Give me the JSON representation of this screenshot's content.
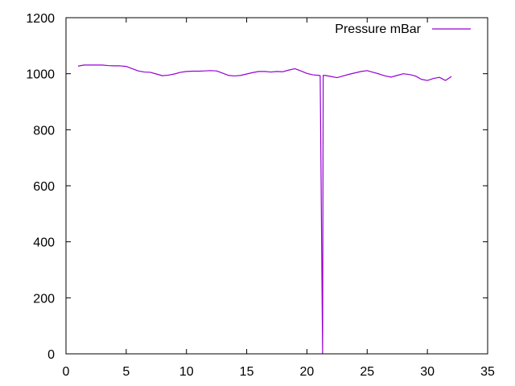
{
  "chart_data": {
    "type": "line",
    "title": "",
    "xlabel": "",
    "ylabel": "",
    "xlim": [
      0,
      35
    ],
    "ylim": [
      0,
      1200
    ],
    "x_ticks": [
      "0",
      "5",
      "10",
      "15",
      "20",
      "25",
      "30",
      "35"
    ],
    "y_ticks": [
      "0",
      "200",
      "400",
      "600",
      "800",
      "1000",
      "1200"
    ],
    "grid": false,
    "legend_position": "top-right",
    "series": [
      {
        "name": "Pressure mBar",
        "color": "#9400d3",
        "x": [
          1.0,
          1.5,
          2.0,
          2.5,
          3.0,
          3.5,
          4.0,
          4.5,
          5.0,
          5.5,
          6.0,
          6.5,
          7.0,
          7.5,
          8.0,
          8.5,
          9.0,
          9.5,
          10.0,
          10.5,
          11.0,
          11.5,
          12.0,
          12.5,
          13.0,
          13.5,
          14.0,
          14.5,
          15.0,
          15.5,
          16.0,
          16.5,
          17.0,
          17.5,
          18.0,
          18.5,
          19.0,
          19.5,
          20.0,
          20.5,
          21.0,
          21.1,
          21.3,
          21.35,
          21.5,
          22.0,
          22.5,
          23.0,
          23.5,
          24.0,
          24.5,
          25.0,
          25.5,
          26.0,
          26.5,
          27.0,
          27.5,
          28.0,
          28.5,
          29.0,
          29.5,
          30.0,
          30.5,
          31.0,
          31.5,
          32.0
        ],
        "y": [
          1027,
          1031,
          1031,
          1031,
          1031,
          1029,
          1028,
          1028,
          1026,
          1018,
          1010,
          1006,
          1005,
          999,
          993,
          995,
          999,
          1005,
          1008,
          1009,
          1009,
          1010,
          1011,
          1010,
          1002,
          994,
          992,
          994,
          999,
          1004,
          1008,
          1008,
          1006,
          1008,
          1007,
          1013,
          1018,
          1010,
          1001,
          996,
          994,
          993,
          0,
          994,
          994,
          990,
          986,
          992,
          998,
          1003,
          1008,
          1011,
          1005,
          999,
          992,
          988,
          994,
          1000,
          997,
          992,
          980,
          976,
          983,
          987,
          976,
          990
        ]
      }
    ]
  }
}
